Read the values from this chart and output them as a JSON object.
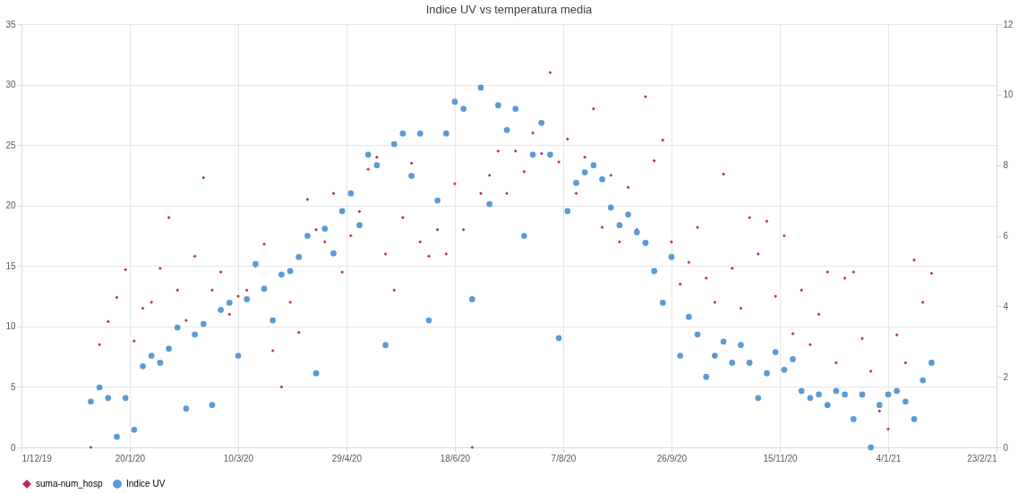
{
  "chart_data": {
    "type": "scatter",
    "title": "Indice UV vs temperatura media",
    "x": [
      "2020-01-02",
      "2020-01-06",
      "2020-01-10",
      "2020-01-14",
      "2020-01-18",
      "2020-01-22",
      "2020-01-26",
      "2020-01-30",
      "2020-02-03",
      "2020-02-07",
      "2020-02-11",
      "2020-02-15",
      "2020-02-19",
      "2020-02-23",
      "2020-02-27",
      "2020-03-02",
      "2020-03-06",
      "2020-03-10",
      "2020-03-14",
      "2020-03-18",
      "2020-03-22",
      "2020-03-26",
      "2020-03-30",
      "2020-04-03",
      "2020-04-07",
      "2020-04-11",
      "2020-04-15",
      "2020-04-19",
      "2020-04-23",
      "2020-04-27",
      "2020-05-01",
      "2020-05-05",
      "2020-05-09",
      "2020-05-13",
      "2020-05-17",
      "2020-05-21",
      "2020-05-25",
      "2020-05-29",
      "2020-06-02",
      "2020-06-06",
      "2020-06-10",
      "2020-06-14",
      "2020-06-18",
      "2020-06-22",
      "2020-06-26",
      "2020-06-30",
      "2020-07-04",
      "2020-07-08",
      "2020-07-12",
      "2020-07-16",
      "2020-07-20",
      "2020-07-24",
      "2020-07-28",
      "2020-08-01",
      "2020-08-05",
      "2020-08-09",
      "2020-08-13",
      "2020-08-17",
      "2020-08-21",
      "2020-08-25",
      "2020-08-29",
      "2020-09-02",
      "2020-09-06",
      "2020-09-10",
      "2020-09-14",
      "2020-09-18",
      "2020-09-22",
      "2020-09-26",
      "2020-09-30",
      "2020-10-04",
      "2020-10-08",
      "2020-10-12",
      "2020-10-16",
      "2020-10-20",
      "2020-10-24",
      "2020-10-28",
      "2020-11-01",
      "2020-11-05",
      "2020-11-09",
      "2020-11-13",
      "2020-11-17",
      "2020-11-21",
      "2020-11-25",
      "2020-11-29",
      "2020-12-03",
      "2020-12-07",
      "2020-12-11",
      "2020-12-15",
      "2020-12-19",
      "2020-12-23",
      "2020-12-27",
      "2020-12-31",
      "2021-01-04",
      "2021-01-08",
      "2021-01-12",
      "2021-01-16",
      "2021-01-20",
      "2021-01-24"
    ],
    "series": [
      {
        "name": "suma-num_hosp",
        "color": "#b5304f",
        "marker": "diamond",
        "values": [
          0,
          8.5,
          10.4,
          12.4,
          14.7,
          8.8,
          11.5,
          12,
          14.8,
          19,
          13,
          10.5,
          15.8,
          22.3,
          13,
          14.5,
          11,
          12.5,
          13,
          15,
          16.8,
          8,
          5,
          12,
          9.5,
          20.5,
          18,
          17,
          21,
          14.5,
          17.5,
          19.5,
          23,
          24,
          16,
          13,
          19,
          23.5,
          17,
          15.8,
          18,
          16,
          21.8,
          18,
          0,
          21,
          22.5,
          24.5,
          21,
          24.5,
          22.8,
          26,
          24.3,
          31,
          23.6,
          25.5,
          21,
          24,
          28,
          18.2,
          22.5,
          17,
          21.5,
          18,
          29,
          23.7,
          25.4,
          17,
          13.5,
          15.3,
          18.2,
          14,
          12,
          22.6,
          14.8,
          11.5,
          19,
          16,
          18.7,
          12.5,
          17.5,
          9.4,
          13,
          8.5,
          11,
          14.5,
          7,
          14,
          14.5,
          9,
          6.3,
          3,
          1.5,
          9.3,
          7,
          15.5,
          12,
          14.4
        ]
      },
      {
        "name": "Indice UV",
        "color": "#5b9bd5",
        "marker": "circle",
        "axis": "y2",
        "values": [
          1.3,
          1.7,
          1.4,
          0.3,
          1.4,
          0.5,
          2.3,
          2.6,
          2.4,
          2.8,
          3.4,
          1.1,
          3.2,
          3.5,
          1.2,
          3.9,
          4.1,
          2.6,
          4.2,
          5.2,
          4.5,
          3.6,
          4.9,
          5.0,
          5.4,
          6.0,
          2.1,
          6.2,
          5.5,
          6.7,
          7.2,
          6.3,
          8.3,
          8.0,
          2.9,
          8.6,
          8.9,
          7.7,
          8.9,
          3.6,
          7.0,
          8.9,
          9.8,
          9.6,
          4.2,
          10.2,
          6.9,
          9.7,
          9.0,
          9.6,
          6.0,
          8.3,
          9.2,
          8.3,
          3.1,
          6.7,
          7.5,
          7.8,
          8.0,
          7.6,
          6.8,
          6.3,
          6.6,
          6.1,
          5.8,
          5.0,
          4.1,
          5.4,
          2.6,
          3.7,
          3.2,
          2.0,
          2.6,
          3.0,
          2.4,
          2.9,
          2.4,
          1.4,
          2.1,
          2.7,
          2.2,
          2.5,
          1.6,
          1.4,
          1.5,
          1.2,
          1.6,
          1.5,
          0.8,
          1.5,
          0.0,
          1.2,
          1.5,
          1.6,
          1.3,
          0.8,
          1.9,
          2.4
        ]
      }
    ],
    "xlim": [
      "2019-12-01",
      "2021-02-23"
    ],
    "xticks": [
      {
        "value": "2019-12-01",
        "label": "1/12/19"
      },
      {
        "value": "2020-01-20",
        "label": "20/1/20"
      },
      {
        "value": "2020-03-10",
        "label": "10/3/20"
      },
      {
        "value": "2020-04-29",
        "label": "29/4/20"
      },
      {
        "value": "2020-06-18",
        "label": "18/6/20"
      },
      {
        "value": "2020-08-07",
        "label": "7/8/20"
      },
      {
        "value": "2020-09-26",
        "label": "26/9/20"
      },
      {
        "value": "2020-11-15",
        "label": "15/11/20"
      },
      {
        "value": "2021-01-04",
        "label": "4/1/21"
      },
      {
        "value": "2021-02-23",
        "label": "23/2/21"
      }
    ],
    "ylim": [
      0,
      35
    ],
    "yticks": [
      0,
      5,
      10,
      15,
      20,
      25,
      30,
      35
    ],
    "y2lim": [
      0,
      12
    ],
    "y2ticks": [
      0,
      2,
      4,
      6,
      8,
      10,
      12
    ],
    "grid": true,
    "legend": "bottom"
  }
}
